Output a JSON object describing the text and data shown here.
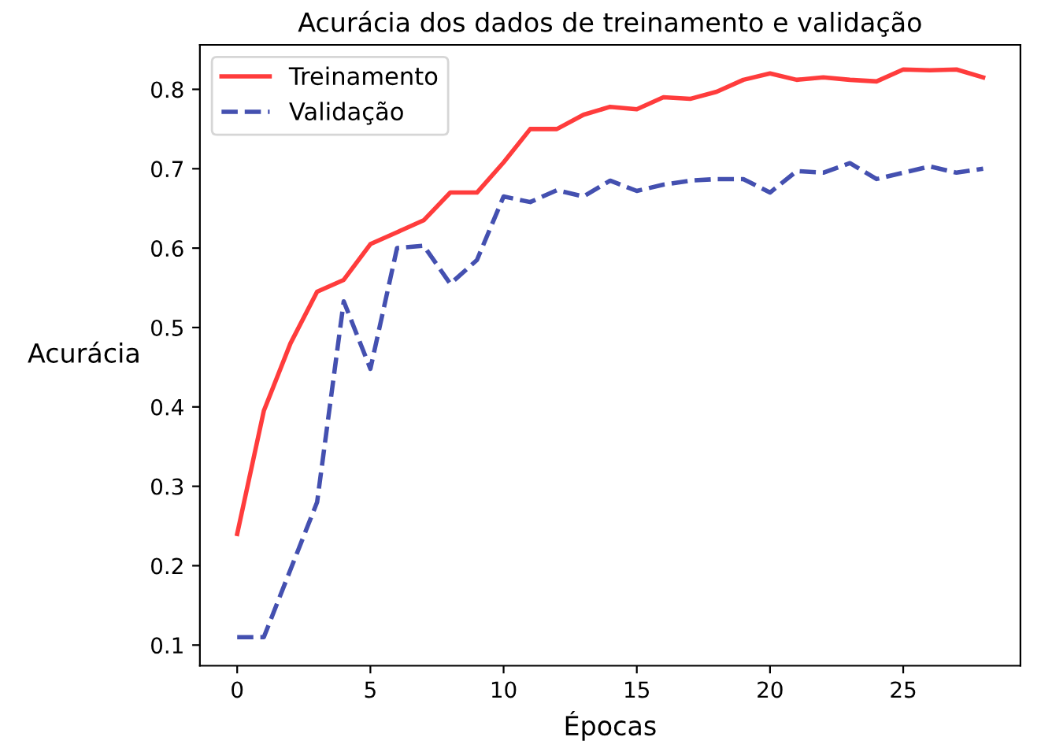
{
  "chart_data": {
    "type": "line",
    "title": "Acurácia dos dados de treinamento e validação",
    "xlabel": "Épocas",
    "ylabel": "Acurácia",
    "x": [
      0,
      1,
      2,
      3,
      4,
      5,
      6,
      7,
      8,
      9,
      10,
      11,
      12,
      13,
      14,
      15,
      16,
      17,
      18,
      19,
      20,
      21,
      22,
      23,
      24,
      25,
      26,
      27,
      28
    ],
    "series": [
      {
        "name": "Treinamento",
        "color": "#ff3c3c",
        "line_style": "solid",
        "values": [
          0.24,
          0.395,
          0.48,
          0.545,
          0.56,
          0.605,
          0.62,
          0.635,
          0.67,
          0.67,
          0.708,
          0.75,
          0.75,
          0.768,
          0.778,
          0.775,
          0.79,
          0.788,
          0.797,
          0.812,
          0.82,
          0.812,
          0.815,
          0.812,
          0.81,
          0.825,
          0.824,
          0.825,
          0.815
        ]
      },
      {
        "name": "Validação",
        "color": "#4450b0",
        "line_style": "dashed",
        "values": [
          0.11,
          0.11,
          0.195,
          0.28,
          0.533,
          0.448,
          0.6,
          0.603,
          0.555,
          0.585,
          0.665,
          0.658,
          0.673,
          0.665,
          0.685,
          0.672,
          0.68,
          0.685,
          0.687,
          0.687,
          0.67,
          0.697,
          0.695,
          0.707,
          0.687,
          0.695,
          0.703,
          0.695,
          0.7
        ]
      }
    ],
    "xlim": [
      -1.4,
      29.4
    ],
    "ylim": [
      0.074,
      0.856
    ],
    "xticks": [
      0,
      5,
      10,
      15,
      20,
      25
    ],
    "yticks": [
      0.1,
      0.2,
      0.3,
      0.4,
      0.5,
      0.6,
      0.7,
      0.8
    ],
    "grid": false,
    "legend": "top left"
  }
}
